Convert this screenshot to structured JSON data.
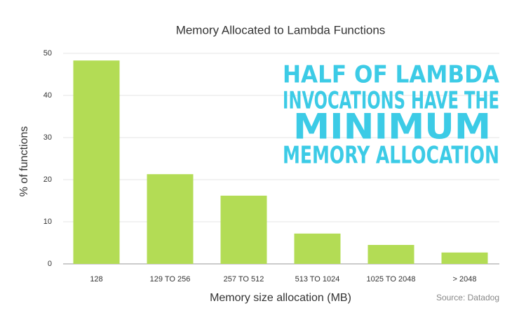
{
  "chart_data": {
    "type": "bar",
    "title": "Memory Allocated to Lambda Functions",
    "x_label": "Memory size allocation (MB)",
    "y_label": "% of functions",
    "categories": [
      "128",
      "129 TO 256",
      "257 TO 512",
      "513 TO 1024",
      "1025 TO 2048",
      "> 2048"
    ],
    "values": [
      48.3,
      21.3,
      16.2,
      7.2,
      4.5,
      2.7
    ],
    "color": "#b3dc55",
    "ylim": [
      0,
      50
    ],
    "yticks": [
      0,
      10,
      20,
      30,
      40,
      50
    ],
    "grid": true,
    "annotation": [
      "HALF OF LAMBDA",
      "INVOCATIONS HAVE THE",
      "MINIMUM",
      "MEMORY ALLOCATION"
    ],
    "source": "Source: Datadog"
  }
}
